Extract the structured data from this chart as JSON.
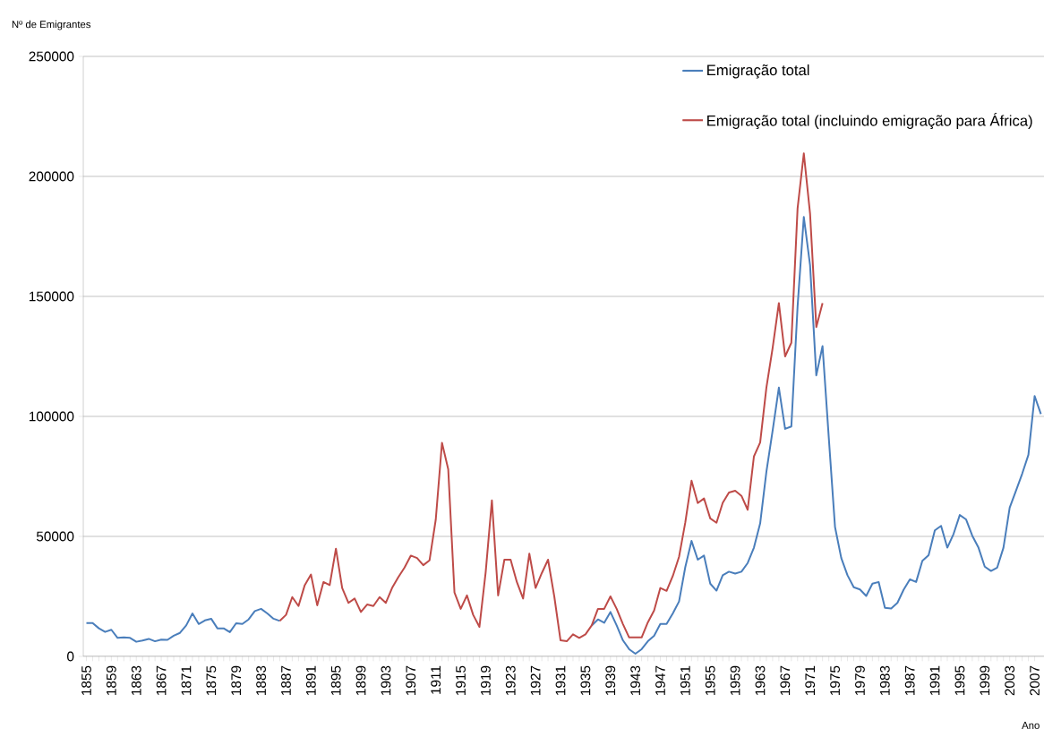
{
  "chart_data": {
    "type": "line",
    "xlabel": "Ano",
    "ylabel": "Nº de Emigrantes",
    "x": [
      1855,
      1856,
      1857,
      1858,
      1859,
      1860,
      1861,
      1862,
      1863,
      1864,
      1865,
      1866,
      1867,
      1868,
      1869,
      1870,
      1871,
      1872,
      1873,
      1874,
      1875,
      1876,
      1877,
      1878,
      1879,
      1880,
      1881,
      1882,
      1883,
      1884,
      1885,
      1886,
      1887,
      1888,
      1889,
      1890,
      1891,
      1892,
      1893,
      1894,
      1895,
      1896,
      1897,
      1898,
      1899,
      1900,
      1901,
      1902,
      1903,
      1904,
      1905,
      1906,
      1907,
      1908,
      1909,
      1910,
      1911,
      1912,
      1913,
      1914,
      1915,
      1916,
      1917,
      1918,
      1919,
      1920,
      1921,
      1922,
      1923,
      1924,
      1925,
      1926,
      1927,
      1928,
      1929,
      1930,
      1931,
      1932,
      1933,
      1934,
      1935,
      1936,
      1937,
      1938,
      1939,
      1940,
      1941,
      1942,
      1943,
      1944,
      1945,
      1946,
      1947,
      1948,
      1949,
      1950,
      1951,
      1952,
      1953,
      1954,
      1955,
      1956,
      1957,
      1958,
      1959,
      1960,
      1961,
      1962,
      1963,
      1964,
      1965,
      1966,
      1967,
      1968,
      1969,
      1970,
      1971,
      1972,
      1973,
      1974,
      1975,
      1976,
      1977,
      1978,
      1979,
      1980,
      1981,
      1982,
      1983,
      1984,
      1985,
      1986,
      1987,
      1988,
      1989,
      1990,
      1991,
      1992,
      1993,
      1994,
      1995,
      1996,
      1997,
      1998,
      1999,
      2000,
      2001,
      2002,
      2003,
      2004,
      2005,
      2006,
      2007,
      2008
    ],
    "series": [
      {
        "name": "Emigração total",
        "color": "#4a7ebb",
        "values": [
          13900,
          13900,
          11700,
          10200,
          11100,
          7700,
          7900,
          7700,
          6100,
          6600,
          7300,
          6300,
          7000,
          6900,
          8600,
          9800,
          12900,
          17900,
          13500,
          15000,
          15700,
          11700,
          11700,
          10100,
          13800,
          13500,
          15400,
          18900,
          19800,
          17900,
          15700,
          14800,
          null,
          null,
          null,
          null,
          null,
          null,
          null,
          null,
          null,
          null,
          null,
          null,
          null,
          null,
          null,
          null,
          null,
          null,
          null,
          null,
          null,
          null,
          null,
          null,
          null,
          null,
          null,
          null,
          null,
          null,
          null,
          null,
          null,
          null,
          null,
          null,
          null,
          null,
          null,
          null,
          null,
          null,
          null,
          null,
          null,
          null,
          null,
          null,
          null,
          12900,
          15400,
          14000,
          18500,
          12900,
          6700,
          3000,
          1100,
          3000,
          6300,
          8600,
          13500,
          13500,
          17900,
          22900,
          37200,
          48100,
          40300,
          42000,
          30300,
          27400,
          33800,
          35300,
          34500,
          35300,
          38900,
          45300,
          55400,
          76900,
          94100,
          112000,
          94800,
          95800,
          145800,
          183100,
          163000,
          117100,
          129300,
          91200,
          53900,
          41000,
          33800,
          28800,
          27900,
          25200,
          30300,
          31000,
          20200,
          20000,
          22300,
          27800,
          32100,
          31000,
          39800,
          42200,
          52500,
          54400,
          45300,
          51000,
          58900,
          57100,
          50300,
          45300,
          37400,
          35600,
          37000,
          45300,
          62000,
          69000,
          76100,
          84000,
          108500,
          101000
        ]
      },
      {
        "name": "Emigração total (incluindo emigração para África)",
        "color": "#be4b48",
        "values": [
          null,
          null,
          null,
          null,
          null,
          null,
          null,
          null,
          null,
          null,
          null,
          null,
          null,
          null,
          null,
          null,
          null,
          null,
          null,
          null,
          null,
          null,
          null,
          null,
          null,
          null,
          null,
          null,
          null,
          null,
          null,
          14800,
          17300,
          24700,
          21000,
          29700,
          34100,
          21300,
          31000,
          29700,
          44900,
          28500,
          22300,
          24100,
          18500,
          21600,
          21000,
          24700,
          22300,
          28500,
          33000,
          37000,
          42000,
          41000,
          38000,
          40000,
          57000,
          89000,
          78000,
          26600,
          19800,
          25400,
          17300,
          12300,
          35000,
          65000,
          25400,
          40300,
          40300,
          31000,
          24100,
          42800,
          28500,
          34700,
          40300,
          25000,
          6700,
          6300,
          9200,
          7700,
          9200,
          12900,
          19800,
          19800,
          25000,
          19800,
          13500,
          7900,
          7900,
          7900,
          14200,
          19100,
          28500,
          27300,
          33500,
          41500,
          55800,
          73200,
          63900,
          65800,
          57500,
          55700,
          64000,
          68300,
          69000,
          66900,
          61100,
          83300,
          89100,
          112000,
          128500,
          147200,
          125000,
          130700,
          186700,
          209600,
          184500,
          137200,
          147200,
          null,
          null,
          null,
          null,
          null,
          null,
          null,
          null,
          null,
          null,
          null,
          null,
          null,
          null,
          null,
          null,
          null,
          null,
          null,
          null,
          null,
          null,
          null,
          null,
          null,
          null,
          null,
          null,
          null,
          null,
          null,
          null,
          null,
          null,
          null
        ]
      }
    ],
    "xlim": [
      1854.5,
      2008.5
    ],
    "xticks": [
      1855,
      1859,
      1863,
      1867,
      1871,
      1875,
      1879,
      1883,
      1887,
      1891,
      1895,
      1899,
      1903,
      1907,
      1911,
      1915,
      1919,
      1923,
      1927,
      1931,
      1935,
      1939,
      1943,
      1947,
      1951,
      1955,
      1959,
      1963,
      1967,
      1971,
      1975,
      1979,
      1983,
      1987,
      1991,
      1995,
      1999,
      2003,
      2007
    ],
    "ylim": [
      0,
      250000
    ],
    "yticks": [
      0,
      50000,
      100000,
      150000,
      200000,
      250000
    ],
    "grid": "y",
    "legend": "top right"
  }
}
